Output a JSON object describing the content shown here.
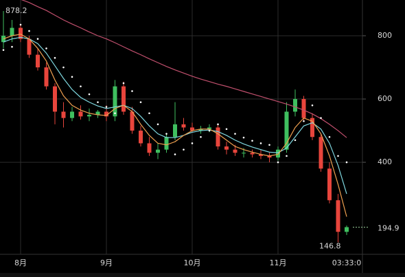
{
  "chart_data": {
    "type": "candlestick",
    "categories": [
      null,
      null,
      "8月",
      null,
      null,
      null,
      null,
      null,
      null,
      null,
      null,
      null,
      "9月",
      null,
      null,
      null,
      null,
      null,
      null,
      null,
      null,
      null,
      "10月",
      null,
      null,
      null,
      null,
      null,
      null,
      null,
      null,
      null,
      "11月",
      null,
      null,
      null,
      null,
      null,
      null,
      null,
      "03:33:0"
    ],
    "open": [
      780,
      800,
      825,
      790,
      740,
      700,
      640,
      560,
      540,
      560,
      545,
      550,
      560,
      545,
      640,
      560,
      500,
      460,
      430,
      440,
      480,
      520,
      510,
      500,
      505,
      510,
      450,
      440,
      430,
      430,
      425,
      420,
      415,
      440,
      560,
      600,
      540,
      480,
      380,
      280,
      180
    ],
    "high": [
      878.2,
      850,
      835,
      800,
      760,
      715,
      650,
      590,
      575,
      580,
      570,
      565,
      580,
      660,
      655,
      575,
      515,
      480,
      460,
      490,
      590,
      540,
      525,
      515,
      520,
      520,
      465,
      455,
      445,
      440,
      440,
      430,
      450,
      590,
      630,
      610,
      555,
      490,
      400,
      300,
      200
    ],
    "low": [
      760,
      780,
      780,
      730,
      690,
      630,
      520,
      510,
      530,
      535,
      530,
      540,
      530,
      530,
      550,
      490,
      450,
      420,
      410,
      430,
      470,
      500,
      495,
      490,
      495,
      440,
      425,
      420,
      415,
      415,
      410,
      400,
      405,
      430,
      545,
      530,
      470,
      370,
      270,
      146.8,
      170
    ],
    "close": [
      800,
      825,
      790,
      740,
      700,
      640,
      560,
      540,
      560,
      545,
      550,
      560,
      545,
      640,
      560,
      500,
      460,
      430,
      440,
      480,
      520,
      510,
      500,
      505,
      510,
      450,
      440,
      430,
      430,
      425,
      420,
      415,
      440,
      560,
      600,
      540,
      480,
      380,
      280,
      180,
      194.9
    ],
    "up_color": "#3fbf5f",
    "down_color": "#e8453c",
    "lines": [
      {
        "color": "#c2506e",
        "style": "solid",
        "values": [
          940,
          925,
          915,
          905,
          892,
          880,
          865,
          850,
          837,
          825,
          812,
          800,
          790,
          778,
          765,
          752,
          740,
          727,
          715,
          703,
          692,
          682,
          672,
          663,
          655,
          647,
          640,
          632,
          624,
          616,
          608,
          600,
          592,
          584,
          575,
          565,
          553,
          538,
          520,
          500,
          478
        ]
      },
      {
        "color": "#7fd8e0",
        "style": "solid",
        "values": [
          780,
          790,
          795,
          790,
          775,
          745,
          705,
          665,
          630,
          605,
          590,
          578,
          570,
          575,
          580,
          570,
          545,
          515,
          490,
          478,
          478,
          485,
          495,
          500,
          502,
          497,
          485,
          470,
          458,
          448,
          440,
          432,
          430,
          445,
          480,
          515,
          525,
          505,
          460,
          390,
          300
        ]
      },
      {
        "color": "#f0a050",
        "style": "solid",
        "values": [
          790,
          800,
          805,
          790,
          760,
          720,
          660,
          610,
          580,
          565,
          555,
          550,
          548,
          570,
          580,
          560,
          520,
          485,
          460,
          455,
          465,
          485,
          500,
          505,
          505,
          490,
          470,
          450,
          440,
          432,
          425,
          420,
          425,
          460,
          510,
          540,
          530,
          490,
          420,
          330,
          228
        ]
      },
      {
        "color": "#ffffff",
        "style": "dotted",
        "values": [
          755,
          765,
          835,
          815,
          790,
          760,
          730,
          700,
          670,
          640,
          615,
          590,
          575,
          555,
          650,
          625,
          590,
          555,
          520,
          490,
          425,
          440,
          460,
          480,
          500,
          520,
          505,
          490,
          478,
          468,
          460,
          455,
          400,
          420,
          470,
          530,
          580,
          540,
          480,
          420,
          400
        ]
      }
    ],
    "ylim": [
      109,
      913
    ],
    "yticks": [
      400,
      600,
      800
    ],
    "grid": true
  }
}
